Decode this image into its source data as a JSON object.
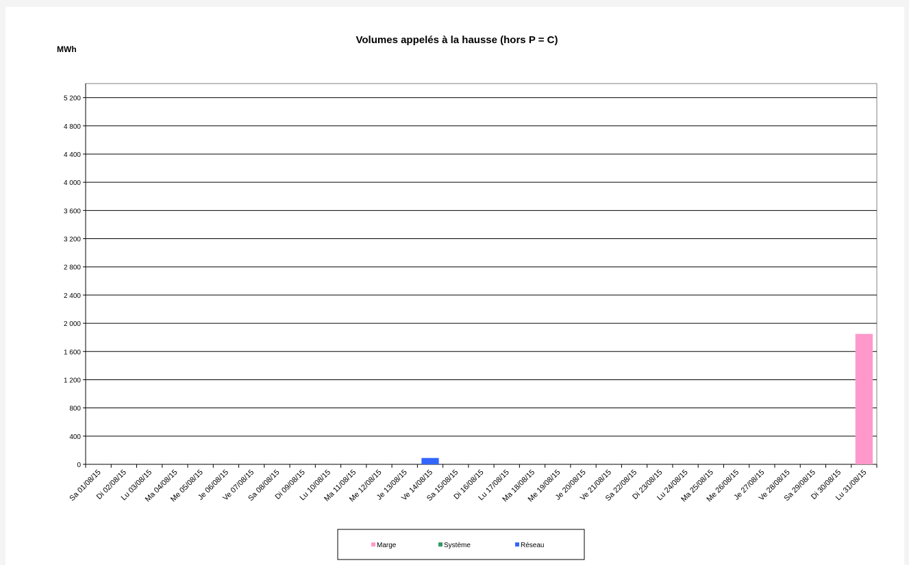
{
  "chart_data": {
    "type": "stacked_bar",
    "title": "Volumes appelés à la hausse (hors P = C)",
    "y_label": "MWh",
    "categories": [
      "Sa 01/08/15",
      "Di 02/08/15",
      "Lu 03/08/15",
      "Ma 04/08/15",
      "Me 05/08/15",
      "Je 06/08/15",
      "Ve 07/08/15",
      "Sa 08/08/15",
      "Di 09/08/15",
      "Lu 10/08/15",
      "Ma 11/08/15",
      "Me 12/08/15",
      "Je 13/08/15",
      "Ve 14/08/15",
      "Sa 15/08/15",
      "Di 16/08/15",
      "Lu 17/08/15",
      "Ma 18/08/15",
      "Me 19/08/15",
      "Je 20/08/15",
      "Ve 21/08/15",
      "Sa 22/08/15",
      "Di 23/08/15",
      "Lu 24/08/15",
      "Ma 25/08/15",
      "Me 26/08/15",
      "Je 27/08/15",
      "Ve 28/08/15",
      "Sa 29/08/15",
      "Di 30/08/15",
      "Lu 31/08/15"
    ],
    "series": [
      {
        "name": "Marge",
        "color": "#ff99cc",
        "values": [
          0,
          0,
          0,
          0,
          0,
          0,
          0,
          0,
          0,
          0,
          0,
          0,
          0,
          0,
          0,
          0,
          0,
          0,
          0,
          0,
          0,
          0,
          0,
          0,
          0,
          0,
          0,
          0,
          0,
          0,
          1850
        ]
      },
      {
        "name": "Système",
        "color": "#339966",
        "values": [
          0,
          0,
          0,
          0,
          0,
          0,
          0,
          0,
          0,
          0,
          0,
          0,
          0,
          0,
          0,
          0,
          0,
          0,
          0,
          0,
          0,
          0,
          0,
          0,
          0,
          0,
          0,
          0,
          0,
          0,
          0
        ]
      },
      {
        "name": "Réseau",
        "color": "#3366ff",
        "values": [
          0,
          0,
          0,
          0,
          0,
          0,
          0,
          0,
          0,
          0,
          0,
          0,
          0,
          90,
          0,
          0,
          0,
          0,
          0,
          0,
          0,
          0,
          0,
          0,
          0,
          0,
          0,
          0,
          0,
          0,
          0
        ]
      }
    ],
    "ylim": [
      0,
      5400
    ],
    "yticks": [
      0,
      400,
      800,
      {
        "value": 1200,
        "label": "1 200"
      },
      {
        "value": 1600,
        "label": "1 600"
      },
      {
        "value": 2000,
        "label": "2 000"
      },
      {
        "value": 2400,
        "label": "2 400"
      },
      {
        "value": 2800,
        "label": "2 800"
      },
      {
        "value": 3200,
        "label": "3 200"
      },
      {
        "value": 3600,
        "label": "3 600"
      },
      {
        "value": 4000,
        "label": "4 000"
      },
      {
        "value": 4400,
        "label": "4 400"
      },
      {
        "value": 4800,
        "label": "4 800"
      },
      {
        "value": 5200,
        "label": "5 200"
      }
    ],
    "grid": true,
    "legend": "bottom"
  }
}
